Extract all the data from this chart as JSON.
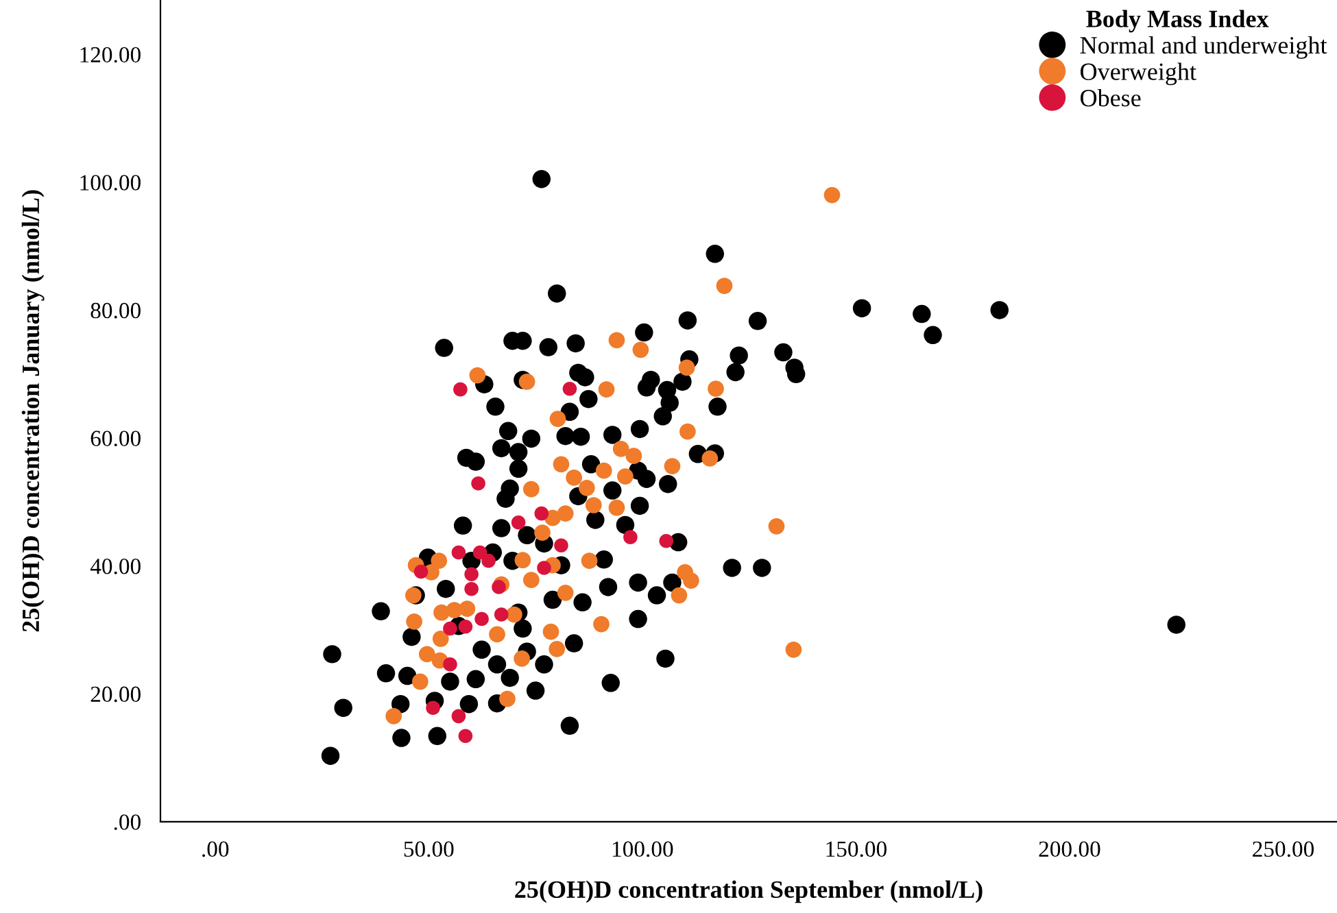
{
  "chart_data": {
    "type": "scatter",
    "xlabel": "25(OH)D concentration September (nmol/L)",
    "ylabel": "25(OH)D concentration January (nmol/L)",
    "legend_title": "Body Mass Index",
    "legend": "top right",
    "marker": "circle",
    "grid": false,
    "xlim": [
      -12.8,
      262.6
    ],
    "ylim": [
      0,
      128.5
    ],
    "xticks": [
      {
        "value": 0,
        "label": ".00"
      },
      {
        "value": 50,
        "label": "50.00"
      },
      {
        "value": 100,
        "label": "100.00"
      },
      {
        "value": 150,
        "label": "150.00"
      },
      {
        "value": 200,
        "label": "200.00"
      },
      {
        "value": 250,
        "label": "250.00"
      }
    ],
    "yticks": [
      {
        "value": 0,
        "label": ".00"
      },
      {
        "value": 20,
        "label": "20.00"
      },
      {
        "value": 40,
        "label": "40.00"
      },
      {
        "value": 60,
        "label": "60.00"
      },
      {
        "value": 80,
        "label": "80.00"
      },
      {
        "value": 100,
        "label": "100.00"
      },
      {
        "value": 120,
        "label": "120.00"
      }
    ],
    "series": [
      {
        "name": "Normal and underweight",
        "color": "#000000",
        "x": [
          76.4,
          117,
          80,
          151.4,
          165.4,
          183.6,
          168,
          110.6,
          127,
          100.4,
          69.6,
          72,
          78,
          84.4,
          53.6,
          133,
          122.6,
          111,
          135.6,
          136,
          121.8,
          85,
          86.6,
          102,
          72,
          105.8,
          109.4,
          101,
          63,
          87.4,
          65.6,
          106.4,
          117.6,
          104.8,
          83,
          68.6,
          93,
          99.4,
          82,
          85.6,
          74,
          67,
          71,
          117,
          113,
          58.8,
          61,
          71,
          88,
          99,
          101,
          106,
          93,
          69,
          68,
          85,
          99.4,
          89,
          96,
          58,
          67,
          73,
          77,
          65,
          69.6,
          81,
          91,
          108.4,
          121,
          128,
          49.8,
          60,
          99,
          107,
          92,
          54,
          47,
          79,
          86,
          103.4,
          38.8,
          71,
          99,
          46,
          72,
          57,
          225,
          73,
          62.4,
          27.4,
          84,
          105.4,
          66,
          40,
          45,
          55,
          69,
          77,
          92.6,
          61,
          75,
          30,
          43.4,
          51.4,
          59.4,
          66,
          43.6,
          52,
          27,
          83
        ],
        "values": [
          100.5,
          88.8,
          82.6,
          80.3,
          79.4,
          80,
          76.1,
          78.4,
          78.3,
          76.5,
          75.2,
          75.2,
          74.2,
          74.8,
          74.1,
          73.4,
          72.9,
          72.3,
          71,
          70,
          70.3,
          70.2,
          69.5,
          69.1,
          69.1,
          67.5,
          68.8,
          67.9,
          68.4,
          66.1,
          64.9,
          65.5,
          64.9,
          63.4,
          64.1,
          61.1,
          60.5,
          61.4,
          60.3,
          60.2,
          59.9,
          58.4,
          57.8,
          57.6,
          57.5,
          56.9,
          56.3,
          55.2,
          55.9,
          54.9,
          53.6,
          52.8,
          51.8,
          52.1,
          50.5,
          50.9,
          49.4,
          47.2,
          46.4,
          46.3,
          45.9,
          44.8,
          43.5,
          42.1,
          40.8,
          40.1,
          41,
          43.7,
          39.7,
          39.7,
          41.3,
          40.8,
          37.4,
          37.4,
          36.7,
          36.4,
          35.4,
          34.7,
          34.3,
          35.4,
          32.9,
          32.7,
          31.7,
          28.9,
          30.2,
          30.6,
          30.8,
          26.6,
          26.9,
          26.2,
          27.9,
          25.5,
          24.6,
          23.2,
          22.8,
          21.9,
          22.5,
          24.6,
          21.7,
          22.3,
          20.5,
          17.8,
          18.4,
          18.9,
          18.4,
          18.5,
          13.1,
          13.4,
          10.3,
          15
        ]
      },
      {
        "name": "Overweight",
        "color": "#f07b2a",
        "x": [
          144.4,
          119.2,
          94,
          99.6,
          110.4,
          61.4,
          73,
          91.6,
          117.2,
          80.2,
          110.6,
          95,
          98,
          81,
          107,
          115.8,
          91,
          84,
          74,
          87,
          96,
          94,
          82,
          88.6,
          76.6,
          131.4,
          79,
          72,
          79,
          87.6,
          52.4,
          47,
          50.6,
          110,
          111.4,
          108.6,
          82,
          67,
          74,
          46.4,
          46.6,
          53,
          56,
          59,
          70,
          90.4,
          78.6,
          52.8,
          66,
          80,
          49.6,
          52.6,
          71.8,
          135.4,
          48,
          68.4,
          41.8
        ],
        "values": [
          98,
          83.8,
          75.3,
          73.8,
          71,
          69.8,
          68.8,
          67.6,
          67.7,
          63,
          61,
          58.3,
          57.2,
          55.9,
          55.6,
          56.8,
          54.9,
          53.8,
          52,
          52.2,
          54,
          49.1,
          48.2,
          49.5,
          45.2,
          46.2,
          47.5,
          40.9,
          40.1,
          40.8,
          40.8,
          40.1,
          39,
          39,
          37.7,
          35.4,
          35.8,
          37.1,
          37.8,
          35.4,
          31.3,
          32.7,
          33.1,
          33.3,
          32.4,
          30.9,
          29.7,
          28.6,
          29.3,
          27,
          26.2,
          25.2,
          25.5,
          26.9,
          21.9,
          19.2,
          16.5
        ]
      },
      {
        "name": "Obese",
        "color": "#d9143c",
        "x": [
          57.4,
          83,
          61.6,
          71,
          76.4,
          97.2,
          105.6,
          81,
          57,
          62,
          60,
          64,
          77,
          48.2,
          66.4,
          60,
          55,
          58.6,
          62.4,
          67,
          55,
          51,
          57,
          58.6
        ],
        "values": [
          67.6,
          67.7,
          52.9,
          46.8,
          48.2,
          44.5,
          43.9,
          43.2,
          42.1,
          42.1,
          38.7,
          40.8,
          39.7,
          39.1,
          36.7,
          36.4,
          30.2,
          30.5,
          31.7,
          32.4,
          24.6,
          17.8,
          16.5,
          13.4
        ]
      }
    ]
  }
}
